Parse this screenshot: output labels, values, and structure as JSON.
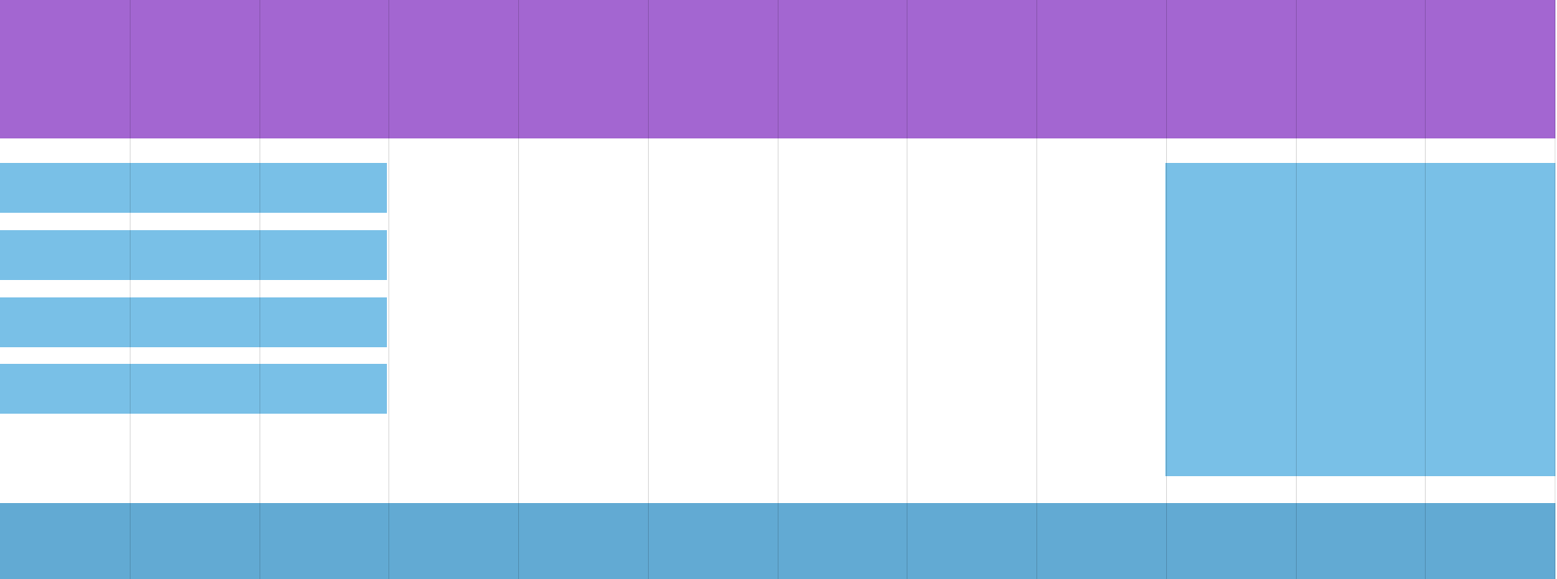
{
  "layout_demo": {
    "column_count": 12,
    "regions": [
      {
        "name": "header-band",
        "color": "#a366d1"
      },
      {
        "name": "left-bar-1",
        "color": "#79c0e7"
      },
      {
        "name": "left-bar-2",
        "color": "#79c0e7"
      },
      {
        "name": "left-bar-3",
        "color": "#79c0e7"
      },
      {
        "name": "left-bar-4",
        "color": "#79c0e7"
      },
      {
        "name": "sidebar-block",
        "color": "#79c0e7"
      },
      {
        "name": "footer-band",
        "color": "#62aad3"
      }
    ],
    "grid_line_color": "#000000"
  }
}
